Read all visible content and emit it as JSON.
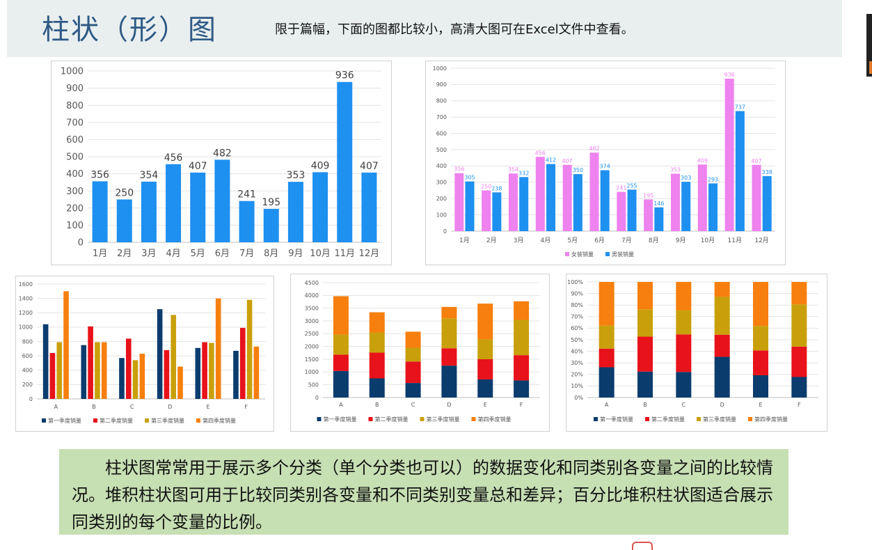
{
  "header": {
    "title": "柱状（形）图",
    "subtitle": "限于篇幅，下面的图都比较小，高清大图可在Excel文件中查看。"
  },
  "note": {
    "text": "柱状图常常用于展示多个分类（单个分类也可以）的数据变化和同类别各变量之间的比较情况。堆积柱状图可用于比较同类别各变量和不同类别变量总和差异；百分比堆积柱状图适合展示同类别的每个变量的比例。"
  },
  "chart_data": [
    {
      "type": "bar",
      "categories": [
        "1月",
        "2月",
        "3月",
        "4月",
        "5月",
        "6月",
        "7月",
        "8月",
        "9月",
        "10月",
        "11月",
        "12月"
      ],
      "values": [
        356,
        250,
        354,
        456,
        407,
        482,
        241,
        195,
        353,
        409,
        936,
        407
      ],
      "ylim": [
        0,
        1000
      ],
      "yticks": [
        0,
        100,
        200,
        300,
        400,
        500,
        600,
        700,
        800,
        900,
        1000
      ],
      "color": "#1e90f0",
      "data_labels": true,
      "grid": true
    },
    {
      "type": "bar",
      "categories": [
        "1月",
        "2月",
        "3月",
        "4月",
        "5月",
        "6月",
        "7月",
        "8月",
        "9月",
        "10月",
        "11月",
        "12月"
      ],
      "series": [
        {
          "name": "女装销量",
          "color": "#ee82ee",
          "values": [
            356,
            250,
            354,
            456,
            407,
            482,
            241,
            195,
            353,
            409,
            936,
            407
          ]
        },
        {
          "name": "男装销量",
          "color": "#1e90f0",
          "values": [
            305,
            238,
            332,
            412,
            350,
            374,
            255,
            146,
            303,
            293,
            737,
            338
          ]
        }
      ],
      "ylim": [
        0,
        1000
      ],
      "yticks": [
        0,
        100,
        200,
        300,
        400,
        500,
        600,
        700,
        800,
        900,
        1000
      ],
      "data_labels": true,
      "grid": true,
      "legend": "bottom"
    },
    {
      "type": "bar",
      "categories": [
        "A",
        "B",
        "C",
        "D",
        "E",
        "F"
      ],
      "series": [
        {
          "name": "第一季度销量",
          "color": "#0b3c6e",
          "values": [
            1040,
            750,
            570,
            1250,
            710,
            670
          ]
        },
        {
          "name": "第二季度销量",
          "color": "#e8121a",
          "values": [
            640,
            1010,
            840,
            680,
            790,
            990
          ]
        },
        {
          "name": "第三季度销量",
          "color": "#c9a00c",
          "values": [
            790,
            790,
            540,
            1170,
            780,
            1380
          ]
        },
        {
          "name": "第四季度销量",
          "color": "#f77f0e",
          "values": [
            1500,
            790,
            630,
            450,
            1400,
            730
          ]
        }
      ],
      "ylim": [
        0,
        1600
      ],
      "yticks": [
        0,
        200,
        400,
        600,
        800,
        1000,
        1200,
        1400,
        1600
      ],
      "grid": true,
      "legend": "bottom"
    },
    {
      "type": "stacked-bar",
      "categories": [
        "A",
        "B",
        "C",
        "D",
        "E",
        "F"
      ],
      "series": [
        {
          "name": "第一季度销量",
          "color": "#0b3c6e",
          "values": [
            1040,
            750,
            570,
            1250,
            710,
            670
          ]
        },
        {
          "name": "第二季度销量",
          "color": "#e8121a",
          "values": [
            640,
            1010,
            840,
            680,
            790,
            990
          ]
        },
        {
          "name": "第三季度销量",
          "color": "#c9a00c",
          "values": [
            790,
            790,
            540,
            1170,
            780,
            1380
          ]
        },
        {
          "name": "第四季度销量",
          "color": "#f77f0e",
          "values": [
            1500,
            790,
            630,
            450,
            1400,
            730
          ]
        }
      ],
      "ylim": [
        0,
        4500
      ],
      "yticks": [
        0,
        500,
        1000,
        1500,
        2000,
        2500,
        3000,
        3500,
        4000,
        4500
      ],
      "grid": true,
      "legend": "bottom"
    },
    {
      "type": "percent-stacked-bar",
      "categories": [
        "A",
        "B",
        "C",
        "D",
        "E",
        "F"
      ],
      "series": [
        {
          "name": "第一季度销量",
          "color": "#0b3c6e",
          "values": [
            1040,
            750,
            570,
            1250,
            710,
            670
          ]
        },
        {
          "name": "第二季度销量",
          "color": "#e8121a",
          "values": [
            640,
            1010,
            840,
            680,
            790,
            990
          ]
        },
        {
          "name": "第三季度销量",
          "color": "#c9a00c",
          "values": [
            790,
            790,
            540,
            1170,
            780,
            1380
          ]
        },
        {
          "name": "第四季度销量",
          "color": "#f77f0e",
          "values": [
            1500,
            790,
            630,
            450,
            1400,
            730
          ]
        }
      ],
      "ylim": [
        0,
        100
      ],
      "yticks": [
        "0%",
        "10%",
        "20%",
        "30%",
        "40%",
        "50%",
        "60%",
        "70%",
        "80%",
        "90%",
        "100%"
      ],
      "grid": true,
      "legend": "bottom"
    }
  ]
}
